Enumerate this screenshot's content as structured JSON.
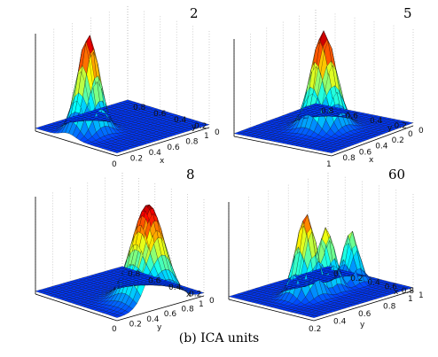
{
  "figure": {
    "caption": "(b) ICA units"
  },
  "chart_data": [
    {
      "type": "surface",
      "panel_label": "2",
      "axes": [
        {
          "name": "x",
          "ticks": [
            "0",
            "0.2",
            "0.4",
            "0.6",
            "0.8",
            "1"
          ]
        },
        {
          "name": "y",
          "ticks": [
            "0",
            "0.2",
            "0.4",
            "0.6",
            "0.8"
          ]
        }
      ],
      "peaks": [
        {
          "x": 0.22,
          "y": 0.6,
          "height": 1.0,
          "spread": 0.09
        }
      ],
      "colormap": "jet",
      "grid": true
    },
    {
      "type": "surface",
      "panel_label": "5",
      "axes": [
        {
          "name": "x",
          "ticks": [
            "1",
            "0.8",
            "0.6",
            "0.4",
            "0.2",
            "0"
          ]
        },
        {
          "name": "y",
          "ticks": [
            "0",
            "0.2",
            "0.4",
            "0.6",
            "0.8"
          ]
        }
      ],
      "peaks": [
        {
          "x": 0.5,
          "y": 0.5,
          "height": 1.0,
          "spread": 0.1
        }
      ],
      "colormap": "jet",
      "grid": true
    },
    {
      "type": "surface",
      "panel_label": "8",
      "axes": [
        {
          "name": "y",
          "ticks": [
            "0",
            "0.2",
            "0.4",
            "0.6",
            "0.8",
            "1"
          ]
        },
        {
          "name": "x",
          "ticks": [
            "0",
            "0.2",
            "0.4",
            "0.6",
            "0.8"
          ]
        }
      ],
      "peaks": [
        {
          "x": 0.5,
          "y": 0.15,
          "height": 1.0,
          "spread": 0.14
        }
      ],
      "colormap": "jet",
      "grid": true
    },
    {
      "type": "surface",
      "panel_label": "60",
      "axes": [
        {
          "name": "y",
          "ticks": [
            "0.2",
            "0.4",
            "0.6",
            "0.8",
            "1"
          ]
        },
        {
          "name": "x",
          "ticks": [
            "1",
            "0.8",
            "0.6",
            "0.4",
            "0.2",
            "0"
          ]
        }
      ],
      "peaks": [
        {
          "x": 0.35,
          "y": 0.5,
          "height": 0.85,
          "spread": 0.08
        },
        {
          "x": 0.55,
          "y": 0.5,
          "height": 0.65,
          "spread": 0.07
        },
        {
          "x": 0.8,
          "y": 0.5,
          "height": 0.55,
          "spread": 0.06
        }
      ],
      "colormap": "jet",
      "grid": true
    }
  ]
}
